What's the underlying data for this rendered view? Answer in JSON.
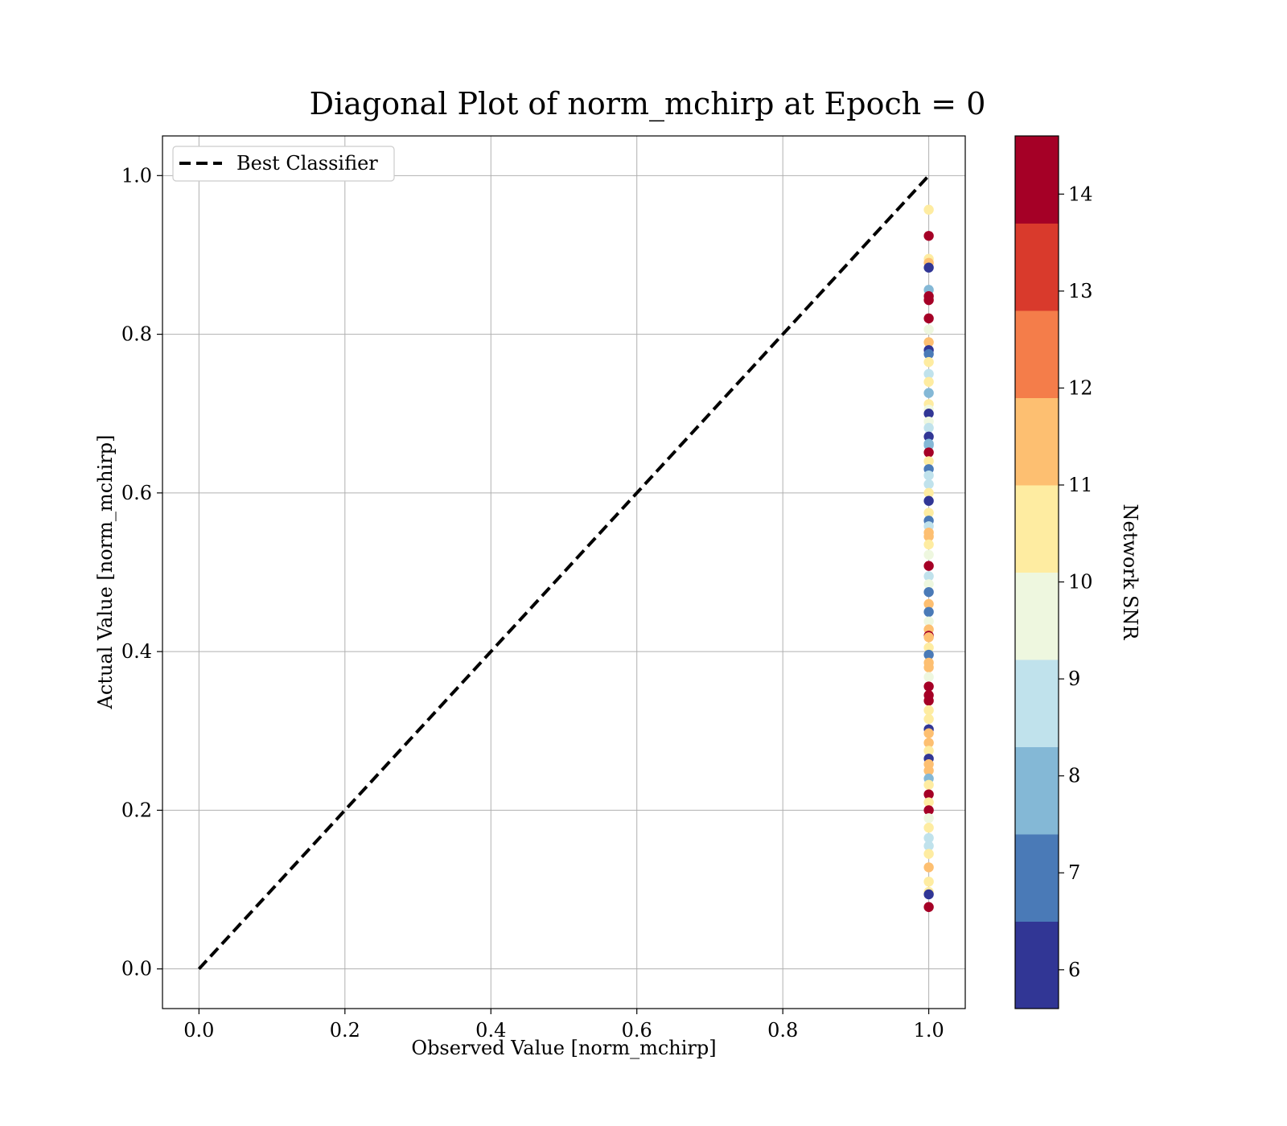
{
  "chart_data": {
    "type": "scatter",
    "title": "Diagonal Plot of norm_mchirp at Epoch = 0",
    "xlabel": "Observed Value [norm_mchirp]",
    "ylabel": "Actual Value [norm_mchirp]",
    "xlim": [
      -0.05,
      1.05
    ],
    "ylim": [
      -0.05,
      1.05
    ],
    "xticks": [
      "0.0",
      "0.2",
      "0.4",
      "0.6",
      "0.8",
      "1.0"
    ],
    "yticks": [
      "0.0",
      "0.2",
      "0.4",
      "0.6",
      "0.8",
      "1.0"
    ],
    "grid": true,
    "legend": {
      "placement": "top-left",
      "entries": [
        "Best Classifier"
      ]
    },
    "best_classifier_line": {
      "x": [
        0,
        1
      ],
      "y": [
        0,
        1
      ],
      "style": "dashed",
      "color": "#000000"
    },
    "colorbar": {
      "label": "Network SNR",
      "range": [
        5.6,
        14.6
      ],
      "ticks": [
        "6",
        "7",
        "8",
        "9",
        "10",
        "11",
        "12",
        "13",
        "14"
      ],
      "colors": [
        "#313695",
        "#4a7ab7",
        "#84b8d6",
        "#c0e2ec",
        "#eef7df",
        "#feeca1",
        "#fdbf71",
        "#f47d4a",
        "#d93a2c",
        "#a50026"
      ]
    },
    "points": [
      {
        "x": 1.0,
        "y": 0.957,
        "snr": 10.5
      },
      {
        "x": 1.0,
        "y": 0.924,
        "snr": 14.2
      },
      {
        "x": 1.0,
        "y": 0.895,
        "snr": 10.7
      },
      {
        "x": 1.0,
        "y": 0.89,
        "snr": 11.3
      },
      {
        "x": 1.0,
        "y": 0.884,
        "snr": 6.0
      },
      {
        "x": 1.0,
        "y": 0.856,
        "snr": 8.0
      },
      {
        "x": 1.0,
        "y": 0.848,
        "snr": 14.3
      },
      {
        "x": 1.0,
        "y": 0.843,
        "snr": 14.1
      },
      {
        "x": 1.0,
        "y": 0.82,
        "snr": 14.4
      },
      {
        "x": 1.0,
        "y": 0.806,
        "snr": 9.8
      },
      {
        "x": 1.0,
        "y": 0.79,
        "snr": 11.2
      },
      {
        "x": 1.0,
        "y": 0.78,
        "snr": 6.2
      },
      {
        "x": 1.0,
        "y": 0.775,
        "snr": 7.0
      },
      {
        "x": 1.0,
        "y": 0.765,
        "snr": 10.6
      },
      {
        "x": 1.0,
        "y": 0.75,
        "snr": 9.0
      },
      {
        "x": 1.0,
        "y": 0.74,
        "snr": 10.4
      },
      {
        "x": 1.0,
        "y": 0.726,
        "snr": 8.2
      },
      {
        "x": 1.0,
        "y": 0.712,
        "snr": 10.9
      },
      {
        "x": 1.0,
        "y": 0.705,
        "snr": 9.3
      },
      {
        "x": 1.0,
        "y": 0.7,
        "snr": 6.0
      },
      {
        "x": 1.0,
        "y": 0.69,
        "snr": 9.7
      },
      {
        "x": 1.0,
        "y": 0.682,
        "snr": 8.7
      },
      {
        "x": 1.0,
        "y": 0.671,
        "snr": 6.1
      },
      {
        "x": 1.0,
        "y": 0.662,
        "snr": 7.9
      },
      {
        "x": 1.0,
        "y": 0.66,
        "snr": 8.1
      },
      {
        "x": 1.0,
        "y": 0.651,
        "snr": 14.3
      },
      {
        "x": 1.0,
        "y": 0.64,
        "snr": 10.2
      },
      {
        "x": 1.0,
        "y": 0.63,
        "snr": 6.8
      },
      {
        "x": 1.0,
        "y": 0.622,
        "snr": 8.6
      },
      {
        "x": 1.0,
        "y": 0.611,
        "snr": 8.4
      },
      {
        "x": 1.0,
        "y": 0.6,
        "snr": 10.5
      },
      {
        "x": 1.0,
        "y": 0.59,
        "snr": 6.2
      },
      {
        "x": 1.0,
        "y": 0.575,
        "snr": 10.3
      },
      {
        "x": 1.0,
        "y": 0.565,
        "snr": 7.0
      },
      {
        "x": 1.0,
        "y": 0.558,
        "snr": 8.3
      },
      {
        "x": 1.0,
        "y": 0.55,
        "snr": 11.4
      },
      {
        "x": 1.0,
        "y": 0.545,
        "snr": 11.1
      },
      {
        "x": 1.0,
        "y": 0.535,
        "snr": 10.6
      },
      {
        "x": 1.0,
        "y": 0.522,
        "snr": 9.9
      },
      {
        "x": 1.0,
        "y": 0.508,
        "snr": 14.5
      },
      {
        "x": 1.0,
        "y": 0.495,
        "snr": 8.5
      },
      {
        "x": 1.0,
        "y": 0.485,
        "snr": 9.6
      },
      {
        "x": 1.0,
        "y": 0.475,
        "snr": 6.9
      },
      {
        "x": 1.0,
        "y": 0.46,
        "snr": 11.2
      },
      {
        "x": 1.0,
        "y": 0.45,
        "snr": 7.1
      },
      {
        "x": 1.0,
        "y": 0.438,
        "snr": 9.8
      },
      {
        "x": 1.0,
        "y": 0.428,
        "snr": 11.6
      },
      {
        "x": 1.0,
        "y": 0.42,
        "snr": 14.2
      },
      {
        "x": 1.0,
        "y": 0.418,
        "snr": 11.3
      },
      {
        "x": 1.0,
        "y": 0.405,
        "snr": 10.2
      },
      {
        "x": 1.0,
        "y": 0.396,
        "snr": 6.7
      },
      {
        "x": 1.0,
        "y": 0.386,
        "snr": 11.5
      },
      {
        "x": 1.0,
        "y": 0.38,
        "snr": 11.0
      },
      {
        "x": 1.0,
        "y": 0.368,
        "snr": 9.7
      },
      {
        "x": 1.0,
        "y": 0.356,
        "snr": 14.4
      },
      {
        "x": 1.0,
        "y": 0.345,
        "snr": 14.0
      },
      {
        "x": 1.0,
        "y": 0.338,
        "snr": 14.3
      },
      {
        "x": 1.0,
        "y": 0.326,
        "snr": 10.5
      },
      {
        "x": 1.0,
        "y": 0.315,
        "snr": 10.8
      },
      {
        "x": 1.0,
        "y": 0.302,
        "snr": 6.1
      },
      {
        "x": 1.0,
        "y": 0.297,
        "snr": 11.4
      },
      {
        "x": 1.0,
        "y": 0.285,
        "snr": 11.2
      },
      {
        "x": 1.0,
        "y": 0.275,
        "snr": 10.4
      },
      {
        "x": 1.0,
        "y": 0.265,
        "snr": 6.3
      },
      {
        "x": 1.0,
        "y": 0.258,
        "snr": 11.1
      },
      {
        "x": 1.0,
        "y": 0.25,
        "snr": 11.6
      },
      {
        "x": 1.0,
        "y": 0.24,
        "snr": 8.2
      },
      {
        "x": 1.0,
        "y": 0.232,
        "snr": 10.6
      },
      {
        "x": 1.0,
        "y": 0.22,
        "snr": 14.2
      },
      {
        "x": 1.0,
        "y": 0.21,
        "snr": 10.9
      },
      {
        "x": 1.0,
        "y": 0.2,
        "snr": 14.4
      },
      {
        "x": 1.0,
        "y": 0.19,
        "snr": 9.5
      },
      {
        "x": 1.0,
        "y": 0.178,
        "snr": 10.3
      },
      {
        "x": 1.0,
        "y": 0.165,
        "snr": 9.0
      },
      {
        "x": 1.0,
        "y": 0.155,
        "snr": 8.7
      },
      {
        "x": 1.0,
        "y": 0.145,
        "snr": 10.1
      },
      {
        "x": 1.0,
        "y": 0.128,
        "snr": 11.3
      },
      {
        "x": 1.0,
        "y": 0.11,
        "snr": 10.4
      },
      {
        "x": 1.0,
        "y": 0.097,
        "snr": 10.7
      },
      {
        "x": 1.0,
        "y": 0.094,
        "snr": 6.2
      },
      {
        "x": 1.0,
        "y": 0.078,
        "snr": 14.3
      }
    ]
  }
}
